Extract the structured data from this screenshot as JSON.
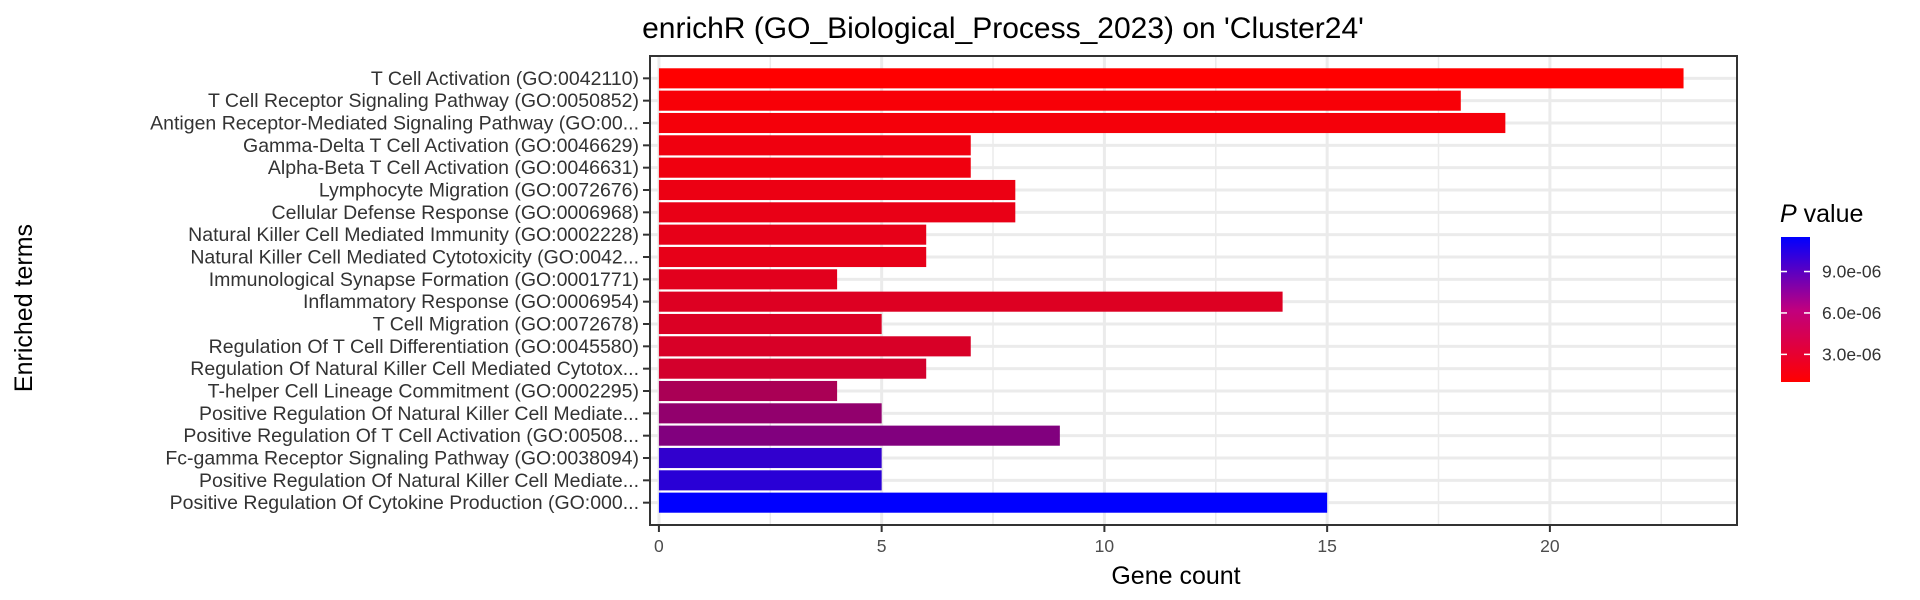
{
  "chart_data": {
    "type": "bar",
    "orientation": "horizontal",
    "title": "enrichR (GO_Biological_Process_2023) on 'Cluster24'",
    "xlabel": "Gene count",
    "ylabel": "Enriched terms",
    "xlim": [
      -0.2,
      24.2
    ],
    "xticks": [
      0,
      5,
      10,
      15,
      20
    ],
    "grid": true,
    "legend": {
      "title_italic": "P",
      "title_rest": " value",
      "placement": "right",
      "ticks": [
        "9.0e-06",
        "6.0e-06",
        "3.0e-06"
      ],
      "tick_values": [
        9e-06,
        6e-06,
        3e-06
      ],
      "range": [
        1e-06,
        1.15e-05
      ],
      "color_low": "#ff0000",
      "color_high": "#0000ff"
    },
    "categories": [
      "T Cell Activation (GO:0042110)",
      "T Cell Receptor Signaling Pathway (GO:0050852)",
      "Antigen Receptor-Mediated Signaling Pathway (GO:00...",
      "Gamma-Delta T Cell Activation (GO:0046629)",
      "Alpha-Beta T Cell Activation (GO:0046631)",
      "Lymphocyte Migration (GO:0072676)",
      "Cellular Defense Response (GO:0006968)",
      "Natural Killer Cell Mediated Immunity (GO:0002228)",
      "Natural Killer Cell Mediated Cytotoxicity (GO:0042...",
      "Immunological Synapse Formation (GO:0001771)",
      "Inflammatory Response (GO:0006954)",
      "T Cell Migration (GO:0072678)",
      "Regulation Of T Cell Differentiation (GO:0045580)",
      "Regulation Of Natural Killer Cell Mediated Cytotox...",
      "T-helper Cell Lineage Commitment (GO:0002295)",
      "Positive Regulation Of Natural Killer Cell Mediate...",
      "Positive Regulation Of T Cell Activation (GO:00508...",
      "Fc-gamma Receptor Signaling Pathway (GO:0038094)",
      "Positive Regulation Of Natural Killer Cell Mediate...",
      "Positive Regulation Of Cytokine Production (GO:000..."
    ],
    "values": [
      23,
      18,
      19,
      7,
      7,
      8,
      8,
      6,
      6,
      4,
      14,
      5,
      7,
      6,
      4,
      5,
      9,
      5,
      5,
      15
    ],
    "pvalues": [
      1e-06,
      1.3e-06,
      1.4e-06,
      1.6e-06,
      1.6e-06,
      1.8e-06,
      1.9e-06,
      2e-06,
      2e-06,
      2.2e-06,
      2.4e-06,
      2.5e-06,
      2.6e-06,
      2.8e-06,
      4.5e-06,
      5.5e-06,
      6.2e-06,
      9.5e-06,
      9.8e-06,
      1.15e-05
    ]
  }
}
